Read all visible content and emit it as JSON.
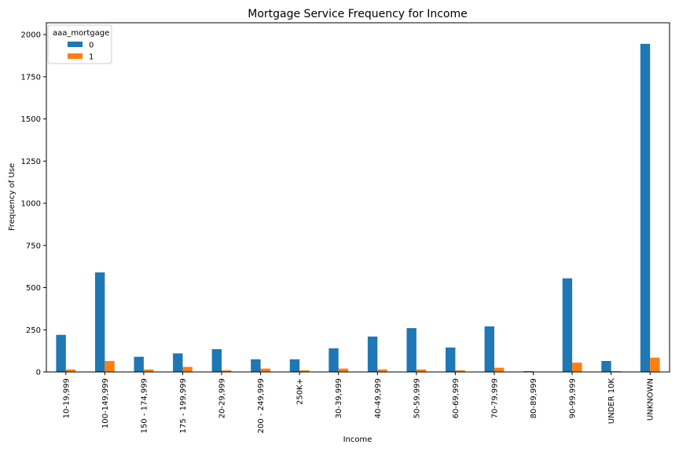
{
  "chart_data": {
    "type": "bar",
    "title": "Mortgage Service Frequency for Income",
    "xlabel": "Income",
    "ylabel": "Frequency of Use",
    "ylim": [
      0,
      2070
    ],
    "yticks": [
      0,
      250,
      500,
      750,
      1000,
      1250,
      1500,
      1750,
      2000
    ],
    "grid": false,
    "legend": {
      "title": "aaa_mortgage",
      "placement": "top-left"
    },
    "categories": [
      "10-19,999",
      "100-149,999",
      "150 - 174,999",
      "175 - 199,999",
      "20-29,999",
      "200 - 249,999",
      "250K+",
      "30-39,999",
      "40-49,999",
      "50-59,999",
      "60-69,999",
      "70-79,999",
      "80-89,999",
      "90-99,999",
      "UNDER 10K",
      "UNKNOWN"
    ],
    "series": [
      {
        "name": "0",
        "color": "#1f77b4",
        "values": [
          220,
          590,
          90,
          110,
          135,
          75,
          75,
          140,
          210,
          260,
          145,
          270,
          5,
          555,
          65,
          1945
        ]
      },
      {
        "name": "1",
        "color": "#ff7f0e",
        "values": [
          15,
          65,
          15,
          30,
          10,
          20,
          10,
          20,
          15,
          15,
          10,
          25,
          0,
          55,
          5,
          85
        ]
      }
    ]
  }
}
